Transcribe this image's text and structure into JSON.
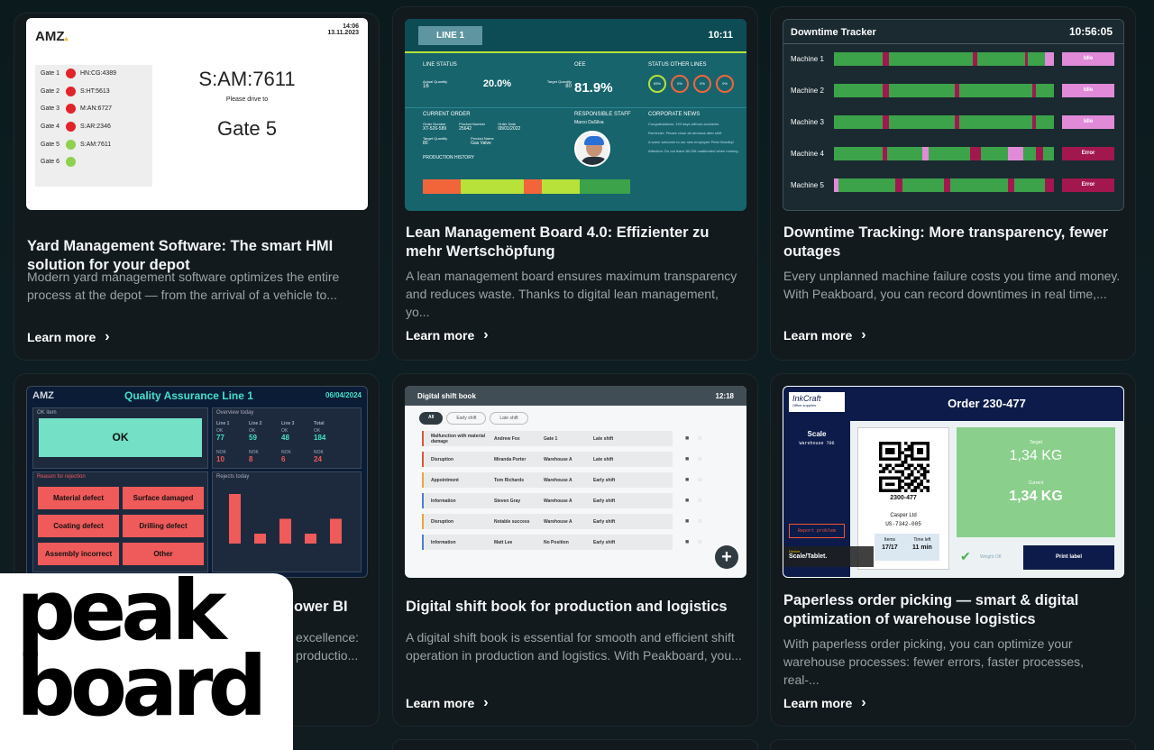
{
  "cards": [
    {
      "title": "Yard Management Software: The smart HMI solution for your depot",
      "desc": "Modern yard management software optimizes the entire process at the depot — from the arrival of a vehicle to...",
      "link": "Learn more"
    },
    {
      "title": "Lean Management Board 4.0: Effizienter zu mehr Wertschöpfung",
      "desc": "A lean management board ensures maximum transparency and reduces waste. Thanks to digital lean management, yo...",
      "link": "Learn more"
    },
    {
      "title": "Downtime Tracking: More transparency, fewer outages",
      "desc": "Every unplanned machine failure costs you time and money. With Peakboard, you can record downtimes in real time,...",
      "link": "Learn more"
    },
    {
      "title": "ower BI",
      "desc1": "excellence:",
      "desc2": "productio...",
      "link": "Learn more"
    },
    {
      "title": "Digital shift book for production and logistics",
      "desc": "A digital shift book is essential for smooth and efficient shift operation in production and logistics. With Peakboard, you...",
      "link": "Learn more"
    },
    {
      "title": "Paperless order picking — smart & digital optimization of warehouse logistics",
      "desc": "With paperless order picking, you can optimize your warehouse processes: fewer errors, faster processes, real-...",
      "link": "Learn more"
    }
  ],
  "yard": {
    "logo": "AMZ",
    "time": "14:06",
    "date": "13.11.2023",
    "gates": [
      {
        "name": "Gate 1",
        "code": "HN:CG:4389",
        "color": "#e0242a"
      },
      {
        "name": "Gate 2",
        "code": "S:HT:5613",
        "color": "#e0242a"
      },
      {
        "name": "Gate 3",
        "code": "M:AN:6727",
        "color": "#e0242a"
      },
      {
        "name": "Gate 4",
        "code": "S:AR:2346",
        "color": "#e0242a"
      },
      {
        "name": "Gate 5",
        "code": "S:AM:7611",
        "color": "#8fd14f"
      },
      {
        "name": "Gate 6",
        "code": "",
        "color": "#8fd14f"
      }
    ],
    "plate": "S:AM:7611",
    "drive": "Please drive to",
    "gate": "Gate 5"
  },
  "lean": {
    "line": "LINE 1",
    "time": "10:11",
    "line_status": "LINE STATUS",
    "oee": "OEE",
    "status_other": "STATUS OTHER LINES",
    "actual_qty_label": "Actual Quantity",
    "actual_qty": "16",
    "pct1": "20.0%",
    "target_qty_label": "Target Quantity",
    "target_qty": "80",
    "oee_val": "81.9%",
    "gauges": [
      "65%",
      "0%",
      "0%",
      "0%"
    ],
    "current_order": "CURRENT ORDER",
    "responsible": "RESPONSIBLE STAFF",
    "news": "CORPORATE NEWS",
    "order_number_label": "Order Number",
    "order_number": "XT-526-589",
    "product_number_label": "Product Number",
    "product_number": "25642",
    "order_date_label": "Order Date",
    "order_date": "08/01/2022",
    "target_qty2_label": "Target Quantity",
    "target_qty2": "80",
    "product_name_label": "Product Name",
    "product_name": "Gas Valve",
    "staff": "Marco DaSilva",
    "history": "PRODUCTION HISTORY",
    "news_items": [
      "Congratulations: 193 days without accidents",
      "Reminder: Please close all windows after shift",
      "A warm welcome to our new employee Peter Bradley!",
      "Attention: Do not leave 80-Ditt unattended when running"
    ]
  },
  "downtime": {
    "title": "Downtime Tracker",
    "time": "10:56:05",
    "machines": [
      {
        "name": "Machine 1",
        "status": "Idle"
      },
      {
        "name": "Machine 2",
        "status": "Idle"
      },
      {
        "name": "Machine 3",
        "status": "Idle"
      },
      {
        "name": "Machine 4",
        "status": "Error"
      },
      {
        "name": "Machine 5",
        "status": "Error"
      }
    ],
    "colors": {
      "run": "#3ca34a",
      "stop": "#a3174f",
      "idle": "#e08ad8",
      "error": "#a3174f"
    }
  },
  "qa": {
    "logo": "AMZ",
    "title": "Quality Assurance Line 1",
    "date": "06/04/2024",
    "ok_item": "OK item",
    "ok": "OK",
    "overview": "Overview today",
    "cols": [
      "Line 1",
      "Line 2",
      "Line 3",
      "Total"
    ],
    "ok_vals": [
      "77",
      "59",
      "48",
      "184"
    ],
    "nok_vals": [
      "10",
      "8",
      "6",
      "24"
    ],
    "ok_lbl": "OK",
    "nok_lbl": "NOK",
    "reason": "Reason for rejection",
    "reasons": [
      "Material defect",
      "Surface damaged",
      "Coating defect",
      "Drilling defect",
      "Assembly incorrect",
      "Other"
    ],
    "rejects": "Rejects today",
    "bars": [
      10,
      2,
      5,
      2,
      5
    ]
  },
  "shift": {
    "title": "Digital shift book",
    "time": "12:18",
    "filters": [
      "All",
      "Early shift",
      "Late shift"
    ],
    "rows": [
      {
        "title": "Malfunction with material damage",
        "who": "Andrew Fox",
        "where": "Gate 1",
        "shift": "Late shift",
        "color": "#e0563b"
      },
      {
        "title": "Disruption",
        "who": "Miranda Porter",
        "where": "Warehouse A",
        "shift": "Late shift",
        "color": "#e0563b"
      },
      {
        "title": "Appointment",
        "who": "Tom Richards",
        "where": "Warehouse A",
        "shift": "Early shift",
        "color": "#f2a33a"
      },
      {
        "title": "Information",
        "who": "Steven Gray",
        "where": "Warehouse A",
        "shift": "Early shift",
        "color": "#4c7fd1"
      },
      {
        "title": "Disruption",
        "who": "Notable success",
        "where": "Warehouse A",
        "shift": "Early shift",
        "color": "#f2a33a"
      },
      {
        "title": "Information",
        "who": "Matt Lee",
        "where": "No Position",
        "shift": "Early shift",
        "color": "#4c7fd1"
      }
    ]
  },
  "order": {
    "brand": "InkCraft",
    "brand_sub": "Office supplies",
    "title": "Order 230-477",
    "scale": "Scale",
    "warehouse": "Warehouse 706",
    "report": "Report problem",
    "qr_code": "2300-477",
    "customer": "Casper Ltd",
    "customer_id": "US-7342-005",
    "items_lbl": "Items",
    "items": "17/17",
    "time_lbl": "Time left",
    "time_val": "11 min",
    "target_lbl": "Target",
    "target": "1,34 KG",
    "current_lbl": "Current",
    "current": "1,34 KG",
    "weight_ok": "Weight OK",
    "print": "Print label",
    "device_lbl": "Device",
    "device": "Scale/Tablet.",
    "date_faint": "11/30/2023"
  },
  "logo": {
    "line1": "peak",
    "line2": "board"
  }
}
